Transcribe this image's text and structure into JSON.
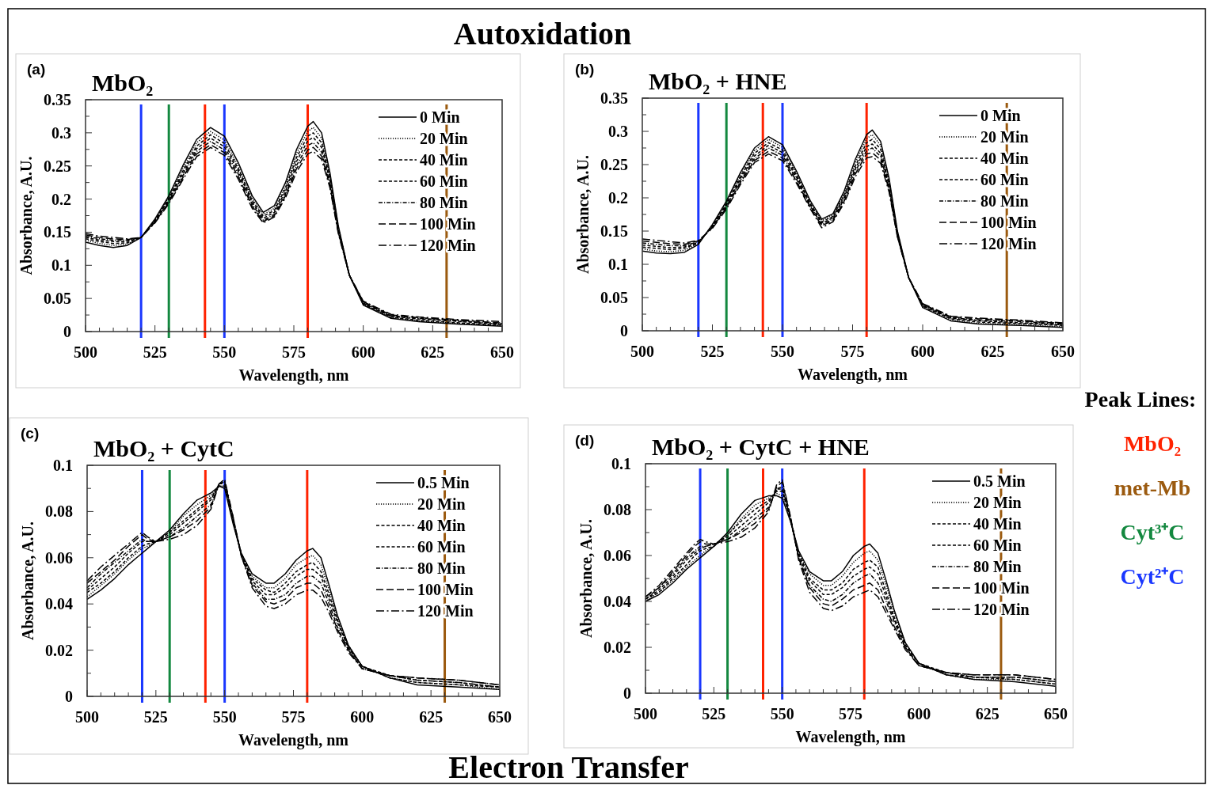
{
  "chart_data": [
    {
      "type": "line",
      "title": "MbO₂",
      "xlabel": "Wavelength, nm",
      "ylabel": "Absorbance, A.U.",
      "annotations": [
        "(a)"
      ],
      "legend": "top right",
      "grid": false,
      "xlim": [
        500,
        650
      ],
      "ylim": [
        0,
        0.35
      ],
      "xticks": [
        500,
        {
          "value": 505,
          "label": null
        },
        {
          "value": 510,
          "label": null
        },
        {
          "value": 515,
          "label": null
        },
        {
          "value": 520,
          "label": null
        },
        525,
        {
          "value": 530,
          "label": null
        },
        {
          "value": 535,
          "label": null
        },
        {
          "value": 540,
          "label": null
        },
        {
          "value": 545,
          "label": null
        },
        550,
        {
          "value": 555,
          "label": null
        },
        {
          "value": 560,
          "label": null
        },
        {
          "value": 565,
          "label": null
        },
        {
          "value": 570,
          "label": null
        },
        575,
        {
          "value": 580,
          "label": null
        },
        {
          "value": 585,
          "label": null
        },
        {
          "value": 590,
          "label": null
        },
        {
          "value": 595,
          "label": null
        },
        600,
        {
          "value": 605,
          "label": null
        },
        {
          "value": 610,
          "label": null
        },
        {
          "value": 615,
          "label": null
        },
        {
          "value": 620,
          "label": null
        },
        625,
        {
          "value": 630,
          "label": null
        },
        {
          "value": 635,
          "label": null
        },
        {
          "value": 640,
          "label": null
        },
        {
          "value": 645,
          "label": null
        },
        650
      ],
      "yticks": [
        0,
        {
          "value": 0.025,
          "label": null
        },
        0.05,
        {
          "value": 0.075,
          "label": null
        },
        0.1,
        {
          "value": 0.125,
          "label": null
        },
        0.15,
        {
          "value": 0.175,
          "label": null
        },
        0.2,
        {
          "value": 0.225,
          "label": null
        },
        0.25,
        {
          "value": 0.275,
          "label": null
        },
        0.3,
        {
          "value": 0.325,
          "label": null
        },
        0.35
      ],
      "ref_lines": [
        {
          "axis": "x",
          "value": 520,
          "color": "#1a37ff"
        },
        {
          "axis": "x",
          "value": 530,
          "color": "#13883f"
        },
        {
          "axis": "x",
          "value": 543,
          "color": "#ff2200"
        },
        {
          "axis": "x",
          "value": 550,
          "color": "#1a37ff"
        },
        {
          "axis": "x",
          "value": 580,
          "color": "#ff2200"
        },
        {
          "axis": "x",
          "value": 630,
          "color": "#9b5a0f"
        }
      ],
      "x": [
        500,
        505,
        510,
        515,
        520,
        525,
        530,
        535,
        540,
        545,
        550,
        555,
        560,
        564,
        568,
        572,
        576,
        580,
        582,
        585,
        588,
        591,
        595,
        600,
        610,
        620,
        635,
        650
      ],
      "series": [
        {
          "name": "0 Min",
          "color": "#000000",
          "line_style": "solid",
          "values": [
            0.135,
            0.13,
            0.127,
            0.13,
            0.142,
            0.17,
            0.205,
            0.25,
            0.29,
            0.308,
            0.295,
            0.255,
            0.205,
            0.18,
            0.19,
            0.225,
            0.275,
            0.31,
            0.317,
            0.3,
            0.24,
            0.16,
            0.085,
            0.04,
            0.02,
            0.015,
            0.011,
            0.008
          ]
        },
        {
          "name": "20 Min",
          "color": "#000000",
          "line_style": "dotted",
          "values": [
            0.138,
            0.133,
            0.13,
            0.132,
            0.142,
            0.169,
            0.203,
            0.246,
            0.285,
            0.302,
            0.289,
            0.25,
            0.201,
            0.177,
            0.186,
            0.22,
            0.269,
            0.302,
            0.308,
            0.292,
            0.236,
            0.158,
            0.085,
            0.041,
            0.021,
            0.016,
            0.012,
            0.009
          ]
        },
        {
          "name": "40 Min",
          "color": "#000000",
          "line_style": "dashed",
          "values": [
            0.14,
            0.136,
            0.133,
            0.134,
            0.142,
            0.168,
            0.201,
            0.242,
            0.28,
            0.297,
            0.284,
            0.246,
            0.198,
            0.174,
            0.183,
            0.216,
            0.263,
            0.295,
            0.3,
            0.285,
            0.232,
            0.156,
            0.085,
            0.042,
            0.022,
            0.017,
            0.013,
            0.01
          ]
        },
        {
          "name": "60 Min",
          "color": "#000000",
          "line_style": "dashed",
          "values": [
            0.142,
            0.138,
            0.136,
            0.136,
            0.142,
            0.167,
            0.199,
            0.238,
            0.276,
            0.292,
            0.279,
            0.242,
            0.195,
            0.171,
            0.18,
            0.212,
            0.257,
            0.288,
            0.293,
            0.278,
            0.228,
            0.154,
            0.085,
            0.043,
            0.023,
            0.019,
            0.015,
            0.011
          ]
        },
        {
          "name": "80 Min",
          "color": "#000000",
          "line_style": "dashdot",
          "values": [
            0.144,
            0.14,
            0.138,
            0.138,
            0.142,
            0.166,
            0.197,
            0.235,
            0.272,
            0.287,
            0.274,
            0.238,
            0.192,
            0.168,
            0.177,
            0.208,
            0.251,
            0.281,
            0.285,
            0.271,
            0.224,
            0.152,
            0.085,
            0.044,
            0.024,
            0.02,
            0.016,
            0.012
          ]
        },
        {
          "name": "100 Min",
          "color": "#000000",
          "line_style": "longdash",
          "values": [
            0.146,
            0.142,
            0.14,
            0.139,
            0.142,
            0.165,
            0.195,
            0.232,
            0.268,
            0.282,
            0.27,
            0.234,
            0.189,
            0.166,
            0.175,
            0.205,
            0.246,
            0.274,
            0.278,
            0.265,
            0.22,
            0.15,
            0.085,
            0.045,
            0.025,
            0.021,
            0.017,
            0.013
          ]
        },
        {
          "name": "120 Min",
          "color": "#000000",
          "line_style": "longdashdot",
          "values": [
            0.148,
            0.144,
            0.142,
            0.14,
            0.142,
            0.164,
            0.193,
            0.229,
            0.264,
            0.278,
            0.266,
            0.23,
            0.186,
            0.164,
            0.173,
            0.202,
            0.241,
            0.268,
            0.272,
            0.26,
            0.217,
            0.148,
            0.085,
            0.046,
            0.026,
            0.022,
            0.018,
            0.015
          ]
        }
      ]
    },
    {
      "type": "line",
      "title": "MbO₂ + HNE",
      "xlabel": "Wavelength, nm",
      "ylabel": "Absorbance, A.U.",
      "annotations": [
        "(b)"
      ],
      "legend": "top right",
      "grid": false,
      "xlim": [
        500,
        650
      ],
      "ylim": [
        0,
        0.35
      ],
      "xticks": [
        500,
        {
          "value": 505,
          "label": null
        },
        {
          "value": 510,
          "label": null
        },
        {
          "value": 515,
          "label": null
        },
        {
          "value": 520,
          "label": null
        },
        525,
        {
          "value": 530,
          "label": null
        },
        {
          "value": 535,
          "label": null
        },
        {
          "value": 540,
          "label": null
        },
        {
          "value": 545,
          "label": null
        },
        550,
        {
          "value": 555,
          "label": null
        },
        {
          "value": 560,
          "label": null
        },
        {
          "value": 565,
          "label": null
        },
        {
          "value": 570,
          "label": null
        },
        575,
        {
          "value": 580,
          "label": null
        },
        {
          "value": 585,
          "label": null
        },
        {
          "value": 590,
          "label": null
        },
        {
          "value": 595,
          "label": null
        },
        600,
        {
          "value": 605,
          "label": null
        },
        {
          "value": 610,
          "label": null
        },
        {
          "value": 615,
          "label": null
        },
        {
          "value": 620,
          "label": null
        },
        625,
        {
          "value": 630,
          "label": null
        },
        {
          "value": 635,
          "label": null
        },
        {
          "value": 640,
          "label": null
        },
        {
          "value": 645,
          "label": null
        },
        650
      ],
      "yticks": [
        0,
        {
          "value": 0.025,
          "label": null
        },
        0.05,
        {
          "value": 0.075,
          "label": null
        },
        0.1,
        {
          "value": 0.125,
          "label": null
        },
        0.15,
        {
          "value": 0.175,
          "label": null
        },
        0.2,
        {
          "value": 0.225,
          "label": null
        },
        0.25,
        {
          "value": 0.275,
          "label": null
        },
        0.3,
        {
          "value": 0.325,
          "label": null
        },
        0.35
      ],
      "ref_lines": [
        {
          "axis": "x",
          "value": 520,
          "color": "#1a37ff"
        },
        {
          "axis": "x",
          "value": 530,
          "color": "#13883f"
        },
        {
          "axis": "x",
          "value": 543,
          "color": "#ff2200"
        },
        {
          "axis": "x",
          "value": 550,
          "color": "#1a37ff"
        },
        {
          "axis": "x",
          "value": 580,
          "color": "#ff2200"
        },
        {
          "axis": "x",
          "value": 630,
          "color": "#9b5a0f"
        }
      ],
      "x": [
        500,
        505,
        510,
        515,
        520,
        525,
        530,
        535,
        540,
        545,
        550,
        555,
        560,
        564,
        568,
        572,
        576,
        580,
        582,
        585,
        588,
        591,
        595,
        600,
        610,
        620,
        635,
        650
      ],
      "series": [
        {
          "name": "0 Min",
          "color": "#000000",
          "line_style": "solid",
          "values": [
            0.12,
            0.117,
            0.116,
            0.118,
            0.13,
            0.16,
            0.195,
            0.238,
            0.275,
            0.292,
            0.28,
            0.24,
            0.195,
            0.168,
            0.176,
            0.21,
            0.258,
            0.295,
            0.302,
            0.285,
            0.23,
            0.15,
            0.08,
            0.035,
            0.015,
            0.01,
            0.008,
            0.005
          ]
        },
        {
          "name": "20 Min",
          "color": "#000000",
          "line_style": "dotted",
          "values": [
            0.123,
            0.12,
            0.119,
            0.121,
            0.131,
            0.159,
            0.193,
            0.235,
            0.271,
            0.288,
            0.276,
            0.237,
            0.193,
            0.166,
            0.174,
            0.207,
            0.253,
            0.289,
            0.295,
            0.279,
            0.226,
            0.148,
            0.08,
            0.036,
            0.016,
            0.011,
            0.009,
            0.006
          ]
        },
        {
          "name": "40 Min",
          "color": "#000000",
          "line_style": "dashed",
          "values": [
            0.126,
            0.124,
            0.122,
            0.124,
            0.132,
            0.158,
            0.191,
            0.232,
            0.267,
            0.283,
            0.272,
            0.234,
            0.191,
            0.164,
            0.172,
            0.204,
            0.248,
            0.283,
            0.288,
            0.273,
            0.222,
            0.146,
            0.08,
            0.037,
            0.018,
            0.013,
            0.011,
            0.008
          ]
        },
        {
          "name": "60 Min",
          "color": "#000000",
          "line_style": "dashed",
          "values": [
            0.129,
            0.127,
            0.125,
            0.126,
            0.133,
            0.157,
            0.189,
            0.229,
            0.263,
            0.279,
            0.268,
            0.231,
            0.189,
            0.162,
            0.17,
            0.201,
            0.244,
            0.277,
            0.281,
            0.267,
            0.218,
            0.144,
            0.08,
            0.038,
            0.019,
            0.015,
            0.012,
            0.009
          ]
        },
        {
          "name": "80 Min",
          "color": "#000000",
          "line_style": "dashdot",
          "values": [
            0.132,
            0.13,
            0.128,
            0.128,
            0.134,
            0.156,
            0.187,
            0.226,
            0.259,
            0.275,
            0.264,
            0.228,
            0.187,
            0.16,
            0.168,
            0.198,
            0.24,
            0.271,
            0.275,
            0.262,
            0.215,
            0.143,
            0.08,
            0.039,
            0.02,
            0.016,
            0.014,
            0.01
          ]
        },
        {
          "name": "100 Min",
          "color": "#000000",
          "line_style": "longdash",
          "values": [
            0.135,
            0.133,
            0.131,
            0.13,
            0.135,
            0.155,
            0.185,
            0.223,
            0.256,
            0.27,
            0.26,
            0.225,
            0.185,
            0.158,
            0.166,
            0.195,
            0.236,
            0.266,
            0.268,
            0.257,
            0.212,
            0.142,
            0.08,
            0.04,
            0.021,
            0.018,
            0.015,
            0.011
          ]
        },
        {
          "name": "120 Min",
          "color": "#000000",
          "line_style": "longdashdot",
          "values": [
            0.138,
            0.136,
            0.134,
            0.132,
            0.136,
            0.154,
            0.183,
            0.22,
            0.253,
            0.266,
            0.256,
            0.222,
            0.183,
            0.155,
            0.164,
            0.192,
            0.232,
            0.26,
            0.262,
            0.252,
            0.209,
            0.141,
            0.08,
            0.041,
            0.022,
            0.019,
            0.016,
            0.012
          ]
        }
      ]
    },
    {
      "type": "line",
      "title": "MbO₂ + CytC",
      "xlabel": "Wavelength, nm",
      "ylabel": "Absorbance, A.U.",
      "annotations": [
        "(c)"
      ],
      "legend": "top right",
      "grid": false,
      "xlim": [
        500,
        650
      ],
      "ylim": [
        0,
        0.1
      ],
      "xticks": [
        500,
        {
          "value": 505,
          "label": null
        },
        {
          "value": 510,
          "label": null
        },
        {
          "value": 515,
          "label": null
        },
        {
          "value": 520,
          "label": null
        },
        525,
        {
          "value": 530,
          "label": null
        },
        {
          "value": 535,
          "label": null
        },
        {
          "value": 540,
          "label": null
        },
        {
          "value": 545,
          "label": null
        },
        550,
        {
          "value": 555,
          "label": null
        },
        {
          "value": 560,
          "label": null
        },
        {
          "value": 565,
          "label": null
        },
        {
          "value": 570,
          "label": null
        },
        575,
        {
          "value": 580,
          "label": null
        },
        {
          "value": 585,
          "label": null
        },
        {
          "value": 590,
          "label": null
        },
        {
          "value": 595,
          "label": null
        },
        600,
        {
          "value": 605,
          "label": null
        },
        {
          "value": 610,
          "label": null
        },
        {
          "value": 615,
          "label": null
        },
        {
          "value": 620,
          "label": null
        },
        625,
        {
          "value": 630,
          "label": null
        },
        {
          "value": 635,
          "label": null
        },
        {
          "value": 640,
          "label": null
        },
        {
          "value": 645,
          "label": null
        },
        650
      ],
      "yticks": [
        0,
        {
          "value": 0.01,
          "label": null
        },
        0.02,
        {
          "value": 0.03,
          "label": null
        },
        0.04,
        {
          "value": 0.05,
          "label": null
        },
        0.06,
        {
          "value": 0.07,
          "label": null
        },
        0.08,
        {
          "value": 0.09,
          "label": null
        },
        0.1
      ],
      "ref_lines": [
        {
          "axis": "x",
          "value": 520,
          "color": "#1a37ff"
        },
        {
          "axis": "x",
          "value": 530,
          "color": "#13883f"
        },
        {
          "axis": "x",
          "value": 543,
          "color": "#ff2200"
        },
        {
          "axis": "x",
          "value": 550,
          "color": "#1a37ff"
        },
        {
          "axis": "x",
          "value": 580,
          "color": "#ff2200"
        },
        {
          "axis": "x",
          "value": 630,
          "color": "#9b5a0f"
        }
      ],
      "x": [
        500,
        505,
        510,
        515,
        518,
        520,
        522,
        525,
        530,
        535,
        540,
        545,
        548,
        550,
        553,
        556,
        560,
        565,
        568,
        572,
        576,
        580,
        582,
        585,
        588,
        591,
        595,
        600,
        610,
        620,
        635,
        650
      ],
      "series": [
        {
          "name": "0.5 Min",
          "color": "#000000",
          "line_style": "solid",
          "values": [
            0.042,
            0.046,
            0.051,
            0.057,
            0.06,
            0.062,
            0.064,
            0.067,
            0.072,
            0.079,
            0.085,
            0.088,
            0.091,
            0.09,
            0.075,
            0.062,
            0.053,
            0.049,
            0.049,
            0.053,
            0.059,
            0.063,
            0.064,
            0.06,
            0.048,
            0.035,
            0.022,
            0.013,
            0.008,
            0.005,
            0.004,
            0.003
          ]
        },
        {
          "name": "20 Min",
          "color": "#000000",
          "line_style": "dotted",
          "values": [
            0.043,
            0.048,
            0.053,
            0.059,
            0.062,
            0.064,
            0.065,
            0.067,
            0.071,
            0.078,
            0.083,
            0.087,
            0.091,
            0.091,
            0.076,
            0.062,
            0.052,
            0.047,
            0.047,
            0.051,
            0.057,
            0.06,
            0.061,
            0.057,
            0.046,
            0.034,
            0.022,
            0.013,
            0.008,
            0.006,
            0.005,
            0.003
          ]
        },
        {
          "name": "40 Min",
          "color": "#000000",
          "line_style": "dashed",
          "values": [
            0.045,
            0.049,
            0.054,
            0.06,
            0.063,
            0.065,
            0.066,
            0.067,
            0.071,
            0.076,
            0.081,
            0.086,
            0.091,
            0.091,
            0.076,
            0.062,
            0.051,
            0.046,
            0.045,
            0.049,
            0.054,
            0.057,
            0.058,
            0.054,
            0.044,
            0.033,
            0.021,
            0.013,
            0.008,
            0.006,
            0.005,
            0.004
          ]
        },
        {
          "name": "60 Min",
          "color": "#000000",
          "line_style": "dashed",
          "values": [
            0.046,
            0.051,
            0.056,
            0.062,
            0.065,
            0.067,
            0.067,
            0.067,
            0.07,
            0.075,
            0.08,
            0.085,
            0.092,
            0.092,
            0.077,
            0.062,
            0.05,
            0.044,
            0.044,
            0.047,
            0.052,
            0.055,
            0.055,
            0.052,
            0.042,
            0.032,
            0.021,
            0.013,
            0.009,
            0.007,
            0.006,
            0.004
          ]
        },
        {
          "name": "80 Min",
          "color": "#000000",
          "line_style": "dashdot",
          "values": [
            0.047,
            0.053,
            0.058,
            0.063,
            0.066,
            0.068,
            0.067,
            0.067,
            0.069,
            0.073,
            0.078,
            0.083,
            0.092,
            0.093,
            0.077,
            0.061,
            0.049,
            0.042,
            0.042,
            0.044,
            0.049,
            0.052,
            0.052,
            0.049,
            0.04,
            0.03,
            0.02,
            0.012,
            0.009,
            0.007,
            0.006,
            0.004
          ]
        },
        {
          "name": "100 Min",
          "color": "#000000",
          "line_style": "longdash",
          "values": [
            0.049,
            0.054,
            0.059,
            0.065,
            0.068,
            0.07,
            0.068,
            0.067,
            0.069,
            0.072,
            0.076,
            0.082,
            0.092,
            0.093,
            0.078,
            0.061,
            0.048,
            0.041,
            0.04,
            0.042,
            0.047,
            0.049,
            0.049,
            0.046,
            0.038,
            0.029,
            0.02,
            0.012,
            0.009,
            0.008,
            0.007,
            0.005
          ]
        },
        {
          "name": "120 Min",
          "color": "#000000",
          "line_style": "longdashdot",
          "values": [
            0.05,
            0.056,
            0.061,
            0.066,
            0.069,
            0.071,
            0.069,
            0.067,
            0.068,
            0.07,
            0.074,
            0.081,
            0.092,
            0.094,
            0.078,
            0.061,
            0.047,
            0.039,
            0.038,
            0.04,
            0.044,
            0.046,
            0.046,
            0.043,
            0.036,
            0.028,
            0.019,
            0.012,
            0.009,
            0.008,
            0.007,
            0.005
          ]
        }
      ]
    },
    {
      "type": "line",
      "title": "MbO₂ + CytC + HNE",
      "xlabel": "Wavelength, nm",
      "ylabel": "Absorbance, A.U.",
      "annotations": [
        "(d)"
      ],
      "legend": "top right",
      "grid": false,
      "xlim": [
        500,
        650
      ],
      "ylim": [
        0,
        0.1
      ],
      "xticks": [
        500,
        {
          "value": 505,
          "label": null
        },
        {
          "value": 510,
          "label": null
        },
        {
          "value": 515,
          "label": null
        },
        {
          "value": 520,
          "label": null
        },
        525,
        {
          "value": 530,
          "label": null
        },
        {
          "value": 535,
          "label": null
        },
        {
          "value": 540,
          "label": null
        },
        {
          "value": 545,
          "label": null
        },
        550,
        {
          "value": 555,
          "label": null
        },
        {
          "value": 560,
          "label": null
        },
        {
          "value": 565,
          "label": null
        },
        {
          "value": 570,
          "label": null
        },
        575,
        {
          "value": 580,
          "label": null
        },
        {
          "value": 585,
          "label": null
        },
        {
          "value": 590,
          "label": null
        },
        {
          "value": 595,
          "label": null
        },
        600,
        {
          "value": 605,
          "label": null
        },
        {
          "value": 610,
          "label": null
        },
        {
          "value": 615,
          "label": null
        },
        {
          "value": 620,
          "label": null
        },
        625,
        {
          "value": 630,
          "label": null
        },
        {
          "value": 635,
          "label": null
        },
        {
          "value": 640,
          "label": null
        },
        {
          "value": 645,
          "label": null
        },
        650
      ],
      "yticks": [
        0,
        {
          "value": 0.01,
          "label": null
        },
        0.02,
        {
          "value": 0.03,
          "label": null
        },
        0.04,
        {
          "value": 0.05,
          "label": null
        },
        0.06,
        {
          "value": 0.07,
          "label": null
        },
        0.08,
        {
          "value": 0.09,
          "label": null
        },
        0.1
      ],
      "ref_lines": [
        {
          "axis": "x",
          "value": 520,
          "color": "#1a37ff"
        },
        {
          "axis": "x",
          "value": 530,
          "color": "#13883f"
        },
        {
          "axis": "x",
          "value": 543,
          "color": "#ff2200"
        },
        {
          "axis": "x",
          "value": 550,
          "color": "#1a37ff"
        },
        {
          "axis": "x",
          "value": 580,
          "color": "#ff2200"
        },
        {
          "axis": "x",
          "value": 630,
          "color": "#9b5a0f"
        }
      ],
      "x": [
        500,
        505,
        510,
        515,
        518,
        520,
        522,
        525,
        530,
        535,
        540,
        545,
        548,
        550,
        553,
        556,
        560,
        565,
        568,
        572,
        576,
        580,
        582,
        585,
        588,
        591,
        595,
        600,
        610,
        620,
        635,
        650
      ],
      "series": [
        {
          "name": "0.5 Min",
          "color": "#000000",
          "line_style": "solid",
          "values": [
            0.04,
            0.043,
            0.048,
            0.054,
            0.057,
            0.059,
            0.061,
            0.064,
            0.07,
            0.078,
            0.084,
            0.086,
            0.086,
            0.085,
            0.075,
            0.062,
            0.053,
            0.049,
            0.049,
            0.053,
            0.06,
            0.064,
            0.065,
            0.061,
            0.049,
            0.036,
            0.022,
            0.013,
            0.008,
            0.006,
            0.005,
            0.003
          ]
        },
        {
          "name": "20 Min",
          "color": "#000000",
          "line_style": "dotted",
          "values": [
            0.04,
            0.044,
            0.049,
            0.055,
            0.058,
            0.06,
            0.062,
            0.064,
            0.069,
            0.076,
            0.082,
            0.085,
            0.087,
            0.086,
            0.075,
            0.061,
            0.052,
            0.047,
            0.047,
            0.051,
            0.057,
            0.061,
            0.062,
            0.058,
            0.047,
            0.035,
            0.022,
            0.013,
            0.008,
            0.006,
            0.006,
            0.004
          ]
        },
        {
          "name": "40 Min",
          "color": "#000000",
          "line_style": "dashed",
          "values": [
            0.041,
            0.044,
            0.05,
            0.056,
            0.06,
            0.062,
            0.063,
            0.064,
            0.069,
            0.075,
            0.08,
            0.084,
            0.088,
            0.088,
            0.076,
            0.061,
            0.05,
            0.045,
            0.045,
            0.048,
            0.054,
            0.057,
            0.058,
            0.055,
            0.044,
            0.033,
            0.021,
            0.013,
            0.008,
            0.007,
            0.006,
            0.004
          ]
        },
        {
          "name": "60 Min",
          "color": "#000000",
          "line_style": "dashed",
          "values": [
            0.041,
            0.045,
            0.051,
            0.058,
            0.061,
            0.063,
            0.064,
            0.065,
            0.068,
            0.073,
            0.078,
            0.083,
            0.089,
            0.089,
            0.076,
            0.06,
            0.049,
            0.043,
            0.043,
            0.046,
            0.051,
            0.054,
            0.055,
            0.052,
            0.042,
            0.032,
            0.021,
            0.013,
            0.009,
            0.007,
            0.007,
            0.005
          ]
        },
        {
          "name": "80 Min",
          "color": "#000000",
          "line_style": "dashdot",
          "values": [
            0.041,
            0.046,
            0.052,
            0.059,
            0.062,
            0.064,
            0.064,
            0.065,
            0.067,
            0.071,
            0.076,
            0.081,
            0.089,
            0.09,
            0.076,
            0.059,
            0.047,
            0.041,
            0.04,
            0.043,
            0.048,
            0.051,
            0.052,
            0.048,
            0.04,
            0.031,
            0.02,
            0.012,
            0.009,
            0.007,
            0.007,
            0.005
          ]
        },
        {
          "name": "100 Min",
          "color": "#000000",
          "line_style": "longdash",
          "values": [
            0.042,
            0.046,
            0.053,
            0.06,
            0.064,
            0.066,
            0.065,
            0.065,
            0.067,
            0.07,
            0.074,
            0.08,
            0.09,
            0.092,
            0.077,
            0.059,
            0.046,
            0.039,
            0.038,
            0.041,
            0.045,
            0.047,
            0.048,
            0.045,
            0.037,
            0.029,
            0.02,
            0.012,
            0.009,
            0.008,
            0.008,
            0.006
          ]
        },
        {
          "name": "120 Min",
          "color": "#000000",
          "line_style": "longdashdot",
          "values": [
            0.042,
            0.047,
            0.054,
            0.061,
            0.065,
            0.067,
            0.066,
            0.065,
            0.066,
            0.068,
            0.072,
            0.079,
            0.091,
            0.093,
            0.077,
            0.058,
            0.044,
            0.037,
            0.036,
            0.038,
            0.042,
            0.044,
            0.045,
            0.042,
            0.035,
            0.028,
            0.019,
            0.012,
            0.009,
            0.008,
            0.008,
            0.006
          ]
        }
      ]
    },
    {
      "type": "other",
      "title": "Peak Lines:",
      "categories": [
        "MbO₂",
        "met-Mb",
        "Cyt³⁺C",
        "Cyt²⁺C"
      ],
      "colors": [
        "#ff2200",
        "#9b5a0f",
        "#13883f",
        "#1a37ff"
      ],
      "annotations": [
        "Autoxidation",
        "Electron Transfer"
      ]
    }
  ]
}
